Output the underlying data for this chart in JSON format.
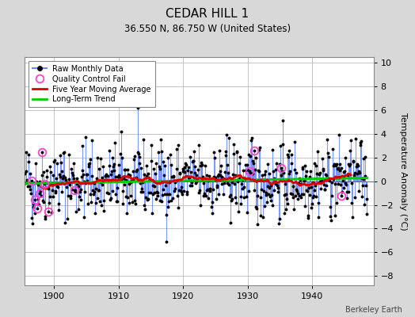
{
  "title": "CEDAR HILL 1",
  "subtitle": "36.550 N, 86.750 W (United States)",
  "ylabel": "Temperature Anomaly (°C)",
  "credit": "Berkeley Earth",
  "xlim": [
    1895.5,
    1949.5
  ],
  "ylim": [
    -8.8,
    10.5
  ],
  "yticks": [
    -8,
    -6,
    -4,
    -2,
    0,
    2,
    4,
    6,
    8,
    10
  ],
  "xticks": [
    1900,
    1910,
    1920,
    1930,
    1940
  ],
  "start_year": 1895.5,
  "end_year": 1948.5,
  "n_months": 636,
  "raw_color": "#3333ff",
  "raw_stem_color": "#6688ff",
  "raw_dot_color": "#000000",
  "qc_fail_color": "#ff44cc",
  "moving_avg_color": "#dd0000",
  "trend_color": "#00cc00",
  "bg_color": "#d8d8d8",
  "plot_bg_color": "#ffffff",
  "grid_color": "#bbbbbb",
  "seed": 42,
  "title_fontsize": 11,
  "subtitle_fontsize": 8.5,
  "tick_fontsize": 8,
  "ylabel_fontsize": 8
}
